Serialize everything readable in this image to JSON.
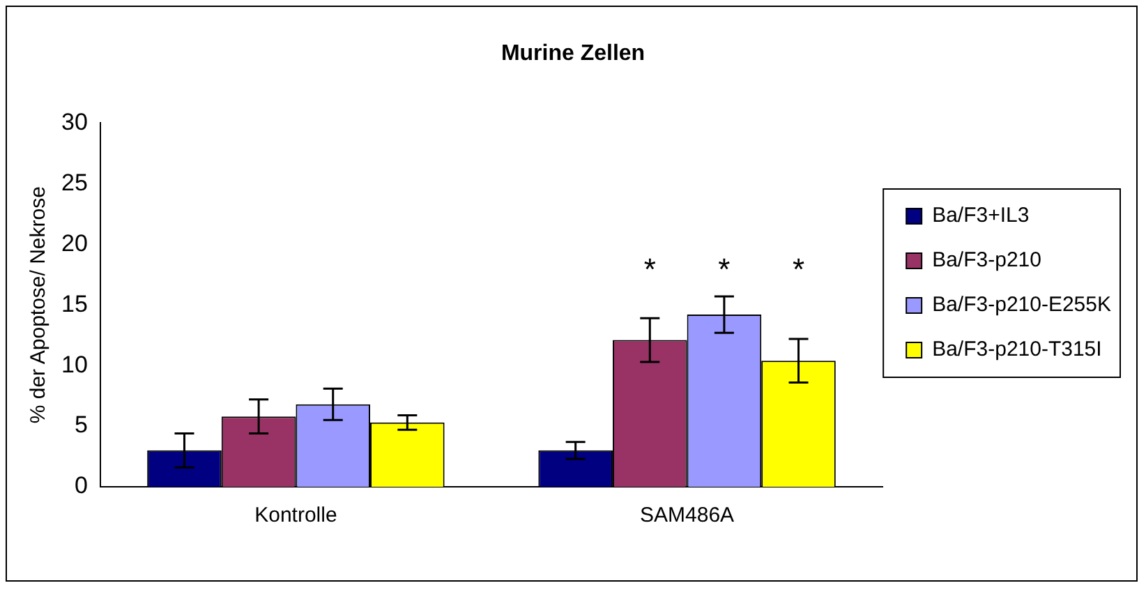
{
  "chart_data": {
    "type": "bar",
    "title": "Murine Zellen",
    "ylabel": "% der Apoptose/ Nekrose",
    "categories": [
      "Kontrolle",
      "SAM486A"
    ],
    "series": [
      {
        "name": "Ba/F3+IL3",
        "color": "#000080",
        "values": [
          3.0,
          3.0
        ],
        "errors": [
          1.4,
          0.7
        ]
      },
      {
        "name": "Ba/F3-p210",
        "color": "#993366",
        "values": [
          5.8,
          12.1
        ],
        "errors": [
          1.4,
          1.8
        ]
      },
      {
        "name": "Ba/F3-p210-E255K",
        "color": "#9999ff",
        "values": [
          6.8,
          14.2
        ],
        "errors": [
          1.3,
          1.5
        ]
      },
      {
        "name": "Ba/F3-p210-T315I",
        "color": "#ffff00",
        "values": [
          5.3,
          10.4
        ],
        "errors": [
          0.6,
          1.8
        ]
      }
    ],
    "ylim": [
      0,
      30
    ],
    "yticks": [
      0,
      5,
      10,
      15,
      20,
      25,
      30
    ],
    "grid": false,
    "legend": "right",
    "annotations": [
      "*",
      "*",
      "*"
    ]
  }
}
